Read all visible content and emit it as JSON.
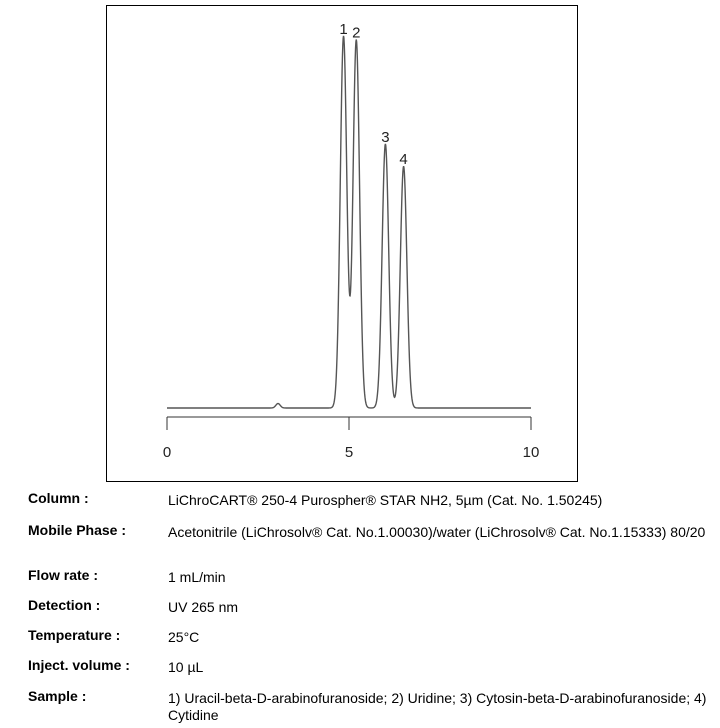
{
  "chart_data": {
    "type": "line",
    "title": "",
    "xlabel": "",
    "ylabel": "",
    "xlim": [
      0,
      10
    ],
    "x_ticks": [
      "0",
      "5",
      "10"
    ],
    "peaks": [
      {
        "label": "1",
        "rt": 4.85,
        "height": 1.0,
        "width": 0.09
      },
      {
        "label": "2",
        "rt": 5.2,
        "height": 0.99,
        "width": 0.09
      },
      {
        "label": "3",
        "rt": 6.0,
        "height": 0.71,
        "width": 0.09
      },
      {
        "label": "4",
        "rt": 6.5,
        "height": 0.65,
        "width": 0.09
      }
    ],
    "line_color": "#555555"
  },
  "details": [
    {
      "label": "Column :",
      "value": "LiChroCART® 250-4 Purospher® STAR NH2, 5µm  (Cat. No. 1.50245)"
    },
    {
      "label": "Mobile Phase :",
      "value": "Acetonitrile (LiChrosolv® Cat. No.1.00030)/water (LiChrosolv® Cat. No.1.15333) 80/20"
    },
    {
      "label": "Flow rate :",
      "value": "1 mL/min"
    },
    {
      "label": "Detection :",
      "value": "UV 265 nm"
    },
    {
      "label": "Temperature :",
      "value": "25°C"
    },
    {
      "label": "Inject. volume :",
      "value": "10 µL"
    },
    {
      "label": "Sample :",
      "value": "1) Uracil-beta-D-arabinofuranoside; 2) Uridine; 3) Cytosin-beta-D-arabinofuranoside; 4) Cytidine"
    }
  ]
}
